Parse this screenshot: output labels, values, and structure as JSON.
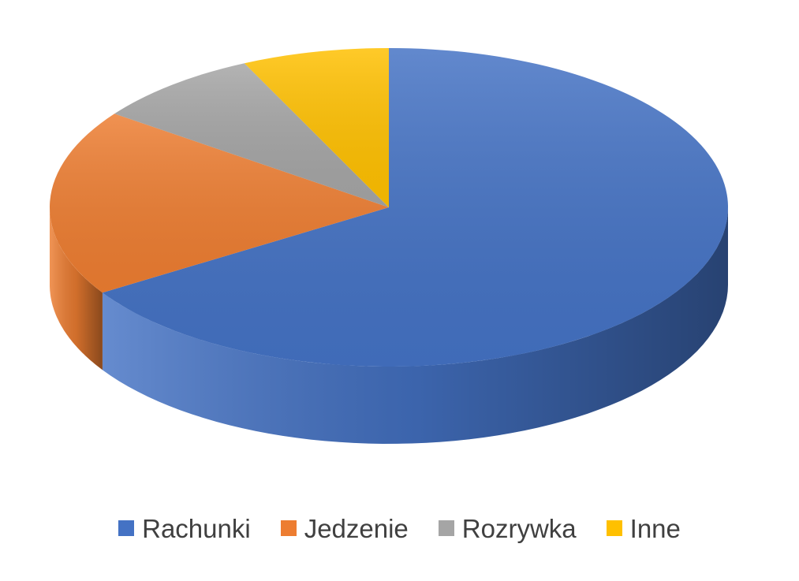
{
  "chart_data": {
    "type": "pie",
    "style": "3d",
    "title": "",
    "legend_position": "bottom",
    "categories": [
      "Rachunki",
      "Jedzenie",
      "Rozrywka",
      "Inne"
    ],
    "values": [
      66,
      19,
      8,
      7
    ],
    "colors": [
      "#4472C4",
      "#ED7D31",
      "#A5A5A5",
      "#FFC000"
    ]
  }
}
